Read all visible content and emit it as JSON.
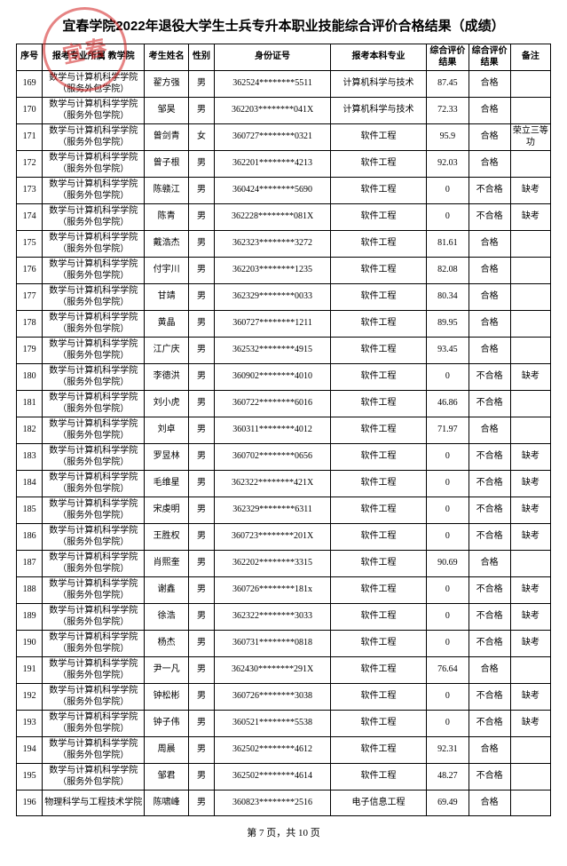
{
  "title": "宜春学院2022年退役大学生士兵专升本职业技能综合评价合格结果（成绩）",
  "footer": "第 7 页，共 10 页",
  "headers": {
    "idx": "序号",
    "dept": "报考专业所属\n教学院",
    "name": "考生姓名",
    "sex": "性别",
    "id": "身份证号",
    "major": "报考本科专业",
    "score": "综合评价结果",
    "result": "综合评价结果",
    "note": "备注"
  },
  "dept_common": "数学与计算机科学学院（服务外包学院）",
  "rows": [
    {
      "idx": "169",
      "dept": "数学与计算机科学学院（服务外包学院）",
      "name": "翟方强",
      "sex": "男",
      "id": "362524********5511",
      "major": "计算机科学与技术",
      "score": "87.45",
      "result": "合格",
      "note": ""
    },
    {
      "idx": "170",
      "dept": "数学与计算机科学学院（服务外包学院）",
      "name": "邹昊",
      "sex": "男",
      "id": "362203********041X",
      "major": "计算机科学与技术",
      "score": "72.33",
      "result": "合格",
      "note": ""
    },
    {
      "idx": "171",
      "dept": "数学与计算机科学学院（服务外包学院）",
      "name": "曾剑青",
      "sex": "女",
      "id": "360727********0321",
      "major": "软件工程",
      "score": "95.9",
      "result": "合格",
      "note": "荣立三等功"
    },
    {
      "idx": "172",
      "dept": "数学与计算机科学学院（服务外包学院）",
      "name": "曾子根",
      "sex": "男",
      "id": "362201********4213",
      "major": "软件工程",
      "score": "92.03",
      "result": "合格",
      "note": ""
    },
    {
      "idx": "173",
      "dept": "数学与计算机科学学院（服务外包学院）",
      "name": "陈赣江",
      "sex": "男",
      "id": "360424********5690",
      "major": "软件工程",
      "score": "0",
      "result": "不合格",
      "note": "缺考"
    },
    {
      "idx": "174",
      "dept": "数学与计算机科学学院（服务外包学院）",
      "name": "陈青",
      "sex": "男",
      "id": "362228********081X",
      "major": "软件工程",
      "score": "0",
      "result": "不合格",
      "note": "缺考"
    },
    {
      "idx": "175",
      "dept": "数学与计算机科学学院（服务外包学院）",
      "name": "戴浩杰",
      "sex": "男",
      "id": "362323********3272",
      "major": "软件工程",
      "score": "81.61",
      "result": "合格",
      "note": ""
    },
    {
      "idx": "176",
      "dept": "数学与计算机科学学院（服务外包学院）",
      "name": "付宇川",
      "sex": "男",
      "id": "362203********1235",
      "major": "软件工程",
      "score": "82.08",
      "result": "合格",
      "note": ""
    },
    {
      "idx": "177",
      "dept": "数学与计算机科学学院（服务外包学院）",
      "name": "甘靖",
      "sex": "男",
      "id": "362329********0033",
      "major": "软件工程",
      "score": "80.34",
      "result": "合格",
      "note": ""
    },
    {
      "idx": "178",
      "dept": "数学与计算机科学学院（服务外包学院）",
      "name": "黄晶",
      "sex": "男",
      "id": "360727********1211",
      "major": "软件工程",
      "score": "89.95",
      "result": "合格",
      "note": ""
    },
    {
      "idx": "179",
      "dept": "数学与计算机科学学院（服务外包学院）",
      "name": "江广庆",
      "sex": "男",
      "id": "362532********4915",
      "major": "软件工程",
      "score": "93.45",
      "result": "合格",
      "note": ""
    },
    {
      "idx": "180",
      "dept": "数学与计算机科学学院（服务外包学院）",
      "name": "李德洪",
      "sex": "男",
      "id": "360902********4010",
      "major": "软件工程",
      "score": "0",
      "result": "不合格",
      "note": "缺考"
    },
    {
      "idx": "181",
      "dept": "数学与计算机科学学院（服务外包学院）",
      "name": "刘小虎",
      "sex": "男",
      "id": "360722********6016",
      "major": "软件工程",
      "score": "46.86",
      "result": "不合格",
      "note": ""
    },
    {
      "idx": "182",
      "dept": "数学与计算机科学学院（服务外包学院）",
      "name": "刘卓",
      "sex": "男",
      "id": "360311********4012",
      "major": "软件工程",
      "score": "71.97",
      "result": "合格",
      "note": ""
    },
    {
      "idx": "183",
      "dept": "数学与计算机科学学院（服务外包学院）",
      "name": "罗昱林",
      "sex": "男",
      "id": "360702********0656",
      "major": "软件工程",
      "score": "0",
      "result": "不合格",
      "note": "缺考"
    },
    {
      "idx": "184",
      "dept": "数学与计算机科学学院（服务外包学院）",
      "name": "毛维星",
      "sex": "男",
      "id": "362322********421X",
      "major": "软件工程",
      "score": "0",
      "result": "不合格",
      "note": "缺考"
    },
    {
      "idx": "185",
      "dept": "数学与计算机科学学院（服务外包学院）",
      "name": "宋虔明",
      "sex": "男",
      "id": "362329********6311",
      "major": "软件工程",
      "score": "0",
      "result": "不合格",
      "note": "缺考"
    },
    {
      "idx": "186",
      "dept": "数学与计算机科学学院（服务外包学院）",
      "name": "王胜权",
      "sex": "男",
      "id": "360723********201X",
      "major": "软件工程",
      "score": "0",
      "result": "不合格",
      "note": "缺考"
    },
    {
      "idx": "187",
      "dept": "数学与计算机科学学院（服务外包学院）",
      "name": "肖熙奎",
      "sex": "男",
      "id": "362202********3315",
      "major": "软件工程",
      "score": "90.69",
      "result": "合格",
      "note": ""
    },
    {
      "idx": "188",
      "dept": "数学与计算机科学学院（服务外包学院）",
      "name": "谢鑫",
      "sex": "男",
      "id": "360726********181x",
      "major": "软件工程",
      "score": "0",
      "result": "不合格",
      "note": "缺考"
    },
    {
      "idx": "189",
      "dept": "数学与计算机科学学院（服务外包学院）",
      "name": "徐浩",
      "sex": "男",
      "id": "362322********3033",
      "major": "软件工程",
      "score": "0",
      "result": "不合格",
      "note": "缺考"
    },
    {
      "idx": "190",
      "dept": "数学与计算机科学学院（服务外包学院）",
      "name": "杨杰",
      "sex": "男",
      "id": "360731********0818",
      "major": "软件工程",
      "score": "0",
      "result": "不合格",
      "note": "缺考"
    },
    {
      "idx": "191",
      "dept": "数学与计算机科学学院（服务外包学院）",
      "name": "尹一凡",
      "sex": "男",
      "id": "362430********291X",
      "major": "软件工程",
      "score": "76.64",
      "result": "合格",
      "note": ""
    },
    {
      "idx": "192",
      "dept": "数学与计算机科学学院（服务外包学院）",
      "name": "钟松彬",
      "sex": "男",
      "id": "360726********3038",
      "major": "软件工程",
      "score": "0",
      "result": "不合格",
      "note": "缺考"
    },
    {
      "idx": "193",
      "dept": "数学与计算机科学学院（服务外包学院）",
      "name": "钟子伟",
      "sex": "男",
      "id": "360521********5538",
      "major": "软件工程",
      "score": "0",
      "result": "不合格",
      "note": "缺考"
    },
    {
      "idx": "194",
      "dept": "数学与计算机科学学院（服务外包学院）",
      "name": "周晨",
      "sex": "男",
      "id": "362502********4612",
      "major": "软件工程",
      "score": "92.31",
      "result": "合格",
      "note": ""
    },
    {
      "idx": "195",
      "dept": "数学与计算机科学学院（服务外包学院）",
      "name": "邹君",
      "sex": "男",
      "id": "362502********4614",
      "major": "软件工程",
      "score": "48.27",
      "result": "不合格",
      "note": ""
    },
    {
      "idx": "196",
      "dept": "物理科学与工程技术学院",
      "name": "陈啸峰",
      "sex": "男",
      "id": "360823********2516",
      "major": "电子信息工程",
      "score": "69.49",
      "result": "合格",
      "note": ""
    }
  ]
}
